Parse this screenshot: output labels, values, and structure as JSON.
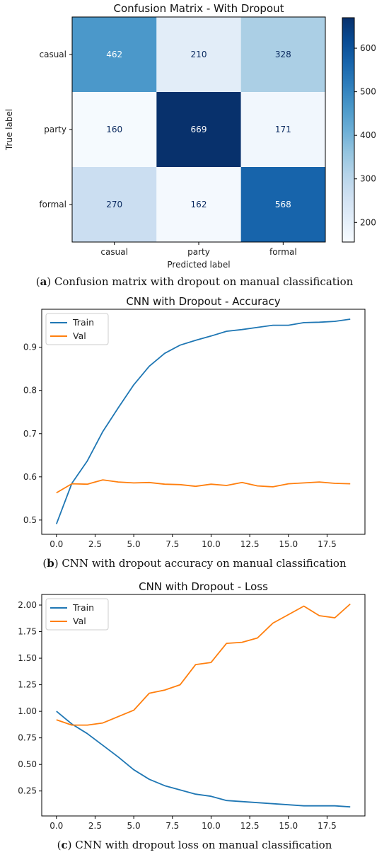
{
  "chart_data": [
    {
      "type": "heatmap",
      "title": "Confusion Matrix - With Dropout",
      "xlabel": "Predicted label",
      "ylabel": "True label",
      "x_categories": [
        "casual",
        "party",
        "formal"
      ],
      "y_categories": [
        "casual",
        "party",
        "formal"
      ],
      "values": [
        [
          462,
          210,
          328
        ],
        [
          160,
          669,
          171
        ],
        [
          270,
          162,
          568
        ]
      ],
      "colormap": "Blues",
      "colorbar": {
        "min": 155,
        "max": 670,
        "ticks": [
          200,
          300,
          400,
          500,
          600
        ]
      }
    },
    {
      "type": "line",
      "title": "CNN with Dropout - Accuracy",
      "xlabel": "",
      "ylabel": "",
      "x": [
        0,
        1,
        2,
        3,
        4,
        5,
        6,
        7,
        8,
        9,
        10,
        11,
        12,
        13,
        14,
        15,
        16,
        17,
        18,
        19
      ],
      "series": [
        {
          "name": "Train",
          "color": "#1f77b4",
          "values": [
            0.491,
            0.585,
            0.637,
            0.705,
            0.76,
            0.813,
            0.856,
            0.886,
            0.905,
            0.916,
            0.926,
            0.937,
            0.941,
            0.946,
            0.951,
            0.951,
            0.957,
            0.958,
            0.96,
            0.965
          ]
        },
        {
          "name": "Val",
          "color": "#ff7f0e",
          "values": [
            0.563,
            0.584,
            0.583,
            0.593,
            0.588,
            0.586,
            0.587,
            0.583,
            0.582,
            0.578,
            0.583,
            0.58,
            0.587,
            0.579,
            0.577,
            0.584,
            0.586,
            0.588,
            0.585,
            0.584
          ]
        }
      ],
      "xlim": [
        -0.95,
        19.95
      ],
      "ylim": [
        0.467,
        0.988
      ],
      "xticks": [
        "0.0",
        "2.5",
        "5.0",
        "7.5",
        "10.0",
        "12.5",
        "15.0",
        "17.5"
      ],
      "yticks": [
        "0.5",
        "0.6",
        "0.7",
        "0.8",
        "0.9"
      ],
      "legend": "top-left",
      "grid": false
    },
    {
      "type": "line",
      "title": "CNN with Dropout - Loss",
      "xlabel": "",
      "ylabel": "",
      "x": [
        0,
        1,
        2,
        3,
        4,
        5,
        6,
        7,
        8,
        9,
        10,
        11,
        12,
        13,
        14,
        15,
        16,
        17,
        18,
        19
      ],
      "series": [
        {
          "name": "Train",
          "color": "#1f77b4",
          "values": [
            1.0,
            0.88,
            0.79,
            0.68,
            0.57,
            0.45,
            0.36,
            0.3,
            0.26,
            0.22,
            0.2,
            0.16,
            0.15,
            0.14,
            0.13,
            0.12,
            0.11,
            0.11,
            0.11,
            0.1
          ]
        },
        {
          "name": "Val",
          "color": "#ff7f0e",
          "values": [
            0.92,
            0.87,
            0.87,
            0.89,
            0.95,
            1.01,
            1.17,
            1.2,
            1.25,
            1.44,
            1.46,
            1.64,
            1.65,
            1.69,
            1.83,
            1.91,
            1.99,
            1.9,
            1.88,
            2.01
          ]
        }
      ],
      "xlim": [
        -0.95,
        19.95
      ],
      "ylim": [
        0.015,
        2.1
      ],
      "xticks": [
        "0.0",
        "2.5",
        "5.0",
        "7.5",
        "10.0",
        "12.5",
        "15.0",
        "17.5"
      ],
      "yticks": [
        "0.25",
        "0.50",
        "0.75",
        "1.00",
        "1.25",
        "1.50",
        "1.75",
        "2.00"
      ],
      "legend": "top-left",
      "grid": false
    }
  ],
  "captions": [
    {
      "label": "a",
      "text": " Confusion matrix with dropout on manual classification"
    },
    {
      "label": "b",
      "text": " CNN with dropout accuracy on manual classification"
    },
    {
      "label": "c",
      "text": " CNN with dropout loss on manual classification"
    }
  ]
}
